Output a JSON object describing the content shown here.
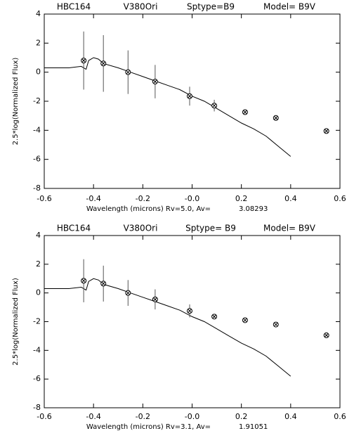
{
  "chart_data": [
    {
      "type": "line",
      "title_parts": [
        "HBC164",
        "V380Ori",
        "Sptype=B9",
        "Model= B9V"
      ],
      "xlabel": "Wavelength (microns) Rv=5.0, Av=",
      "av_value": "3.08293",
      "ylabel": "2.5*log(Normalized Flux)",
      "xlim": [
        -0.6,
        0.6
      ],
      "xticks": [
        -0.6,
        -0.4,
        -0.2,
        {
          "value": 0,
          "label": "-0.0"
        },
        0.2,
        0.4,
        0.6
      ],
      "ylim": [
        -8,
        4
      ],
      "yticks": [
        -8,
        -6,
        -4,
        -2,
        0,
        2,
        4
      ],
      "series": [
        {
          "style": "line",
          "color": "#000000",
          "x": [
            -0.6,
            -0.55,
            -0.5,
            -0.45,
            -0.43,
            -0.42,
            -0.4,
            -0.38,
            -0.36,
            -0.3,
            -0.25,
            -0.2,
            -0.15,
            -0.1,
            -0.05,
            0.0,
            0.05,
            0.1,
            0.15,
            0.2,
            0.25,
            0.3,
            0.35,
            0.4
          ],
          "values": [
            0.3,
            0.3,
            0.3,
            0.4,
            0.2,
            0.8,
            1.0,
            0.9,
            0.6,
            0.3,
            0.0,
            -0.3,
            -0.6,
            -0.9,
            -1.2,
            -1.65,
            -2.0,
            -2.5,
            -3.0,
            -3.5,
            -3.9,
            -4.4,
            -5.1,
            -5.8
          ]
        },
        {
          "style": "markers",
          "color": "#000000",
          "x": [
            -0.44,
            -0.36,
            -0.26,
            -0.15,
            -0.01,
            0.09,
            0.215,
            0.34,
            0.545
          ],
          "values": [
            0.8,
            0.6,
            0.0,
            -0.65,
            -1.65,
            -2.3,
            -2.75,
            -3.15,
            -4.05
          ],
          "errors": [
            2.0,
            1.95,
            1.5,
            1.15,
            0.65,
            0.4,
            0,
            0,
            0
          ]
        }
      ]
    },
    {
      "type": "line",
      "title_parts": [
        "HBC164",
        "V380Ori",
        "Sptype= B9",
        "Model= B9V"
      ],
      "xlabel": "Wavelength (microns) Rv=3.1, Av=",
      "av_value": "1.91051",
      "ylabel": "2.5*log(Normalized Flux)",
      "xlim": [
        -0.6,
        0.6
      ],
      "xticks": [
        -0.6,
        -0.4,
        -0.2,
        {
          "value": 0,
          "label": "-0.0"
        },
        0.2,
        0.4,
        0.6
      ],
      "ylim": [
        -8,
        4
      ],
      "yticks": [
        -8,
        -6,
        -4,
        -2,
        0,
        2,
        4
      ],
      "series": [
        {
          "style": "line",
          "color": "#000000",
          "x": [
            -0.6,
            -0.55,
            -0.5,
            -0.45,
            -0.43,
            -0.42,
            -0.4,
            -0.38,
            -0.36,
            -0.3,
            -0.25,
            -0.2,
            -0.15,
            -0.1,
            -0.05,
            0.0,
            0.05,
            0.1,
            0.15,
            0.2,
            0.25,
            0.3,
            0.35,
            0.4
          ],
          "values": [
            0.3,
            0.3,
            0.3,
            0.4,
            0.2,
            0.8,
            1.0,
            0.9,
            0.6,
            0.3,
            0.0,
            -0.3,
            -0.6,
            -0.9,
            -1.2,
            -1.65,
            -2.0,
            -2.5,
            -3.0,
            -3.5,
            -3.9,
            -4.4,
            -5.1,
            -5.8
          ]
        },
        {
          "style": "markers",
          "color": "#000000",
          "x": [
            -0.44,
            -0.36,
            -0.26,
            -0.15,
            -0.01,
            0.09,
            0.215,
            0.34,
            0.545
          ],
          "values": [
            0.85,
            0.65,
            0.0,
            -0.45,
            -1.25,
            -1.65,
            -1.9,
            -2.2,
            -2.95
          ],
          "errors": [
            1.5,
            1.25,
            0.9,
            0.7,
            0.45,
            0,
            0,
            0,
            0
          ]
        }
      ]
    }
  ]
}
